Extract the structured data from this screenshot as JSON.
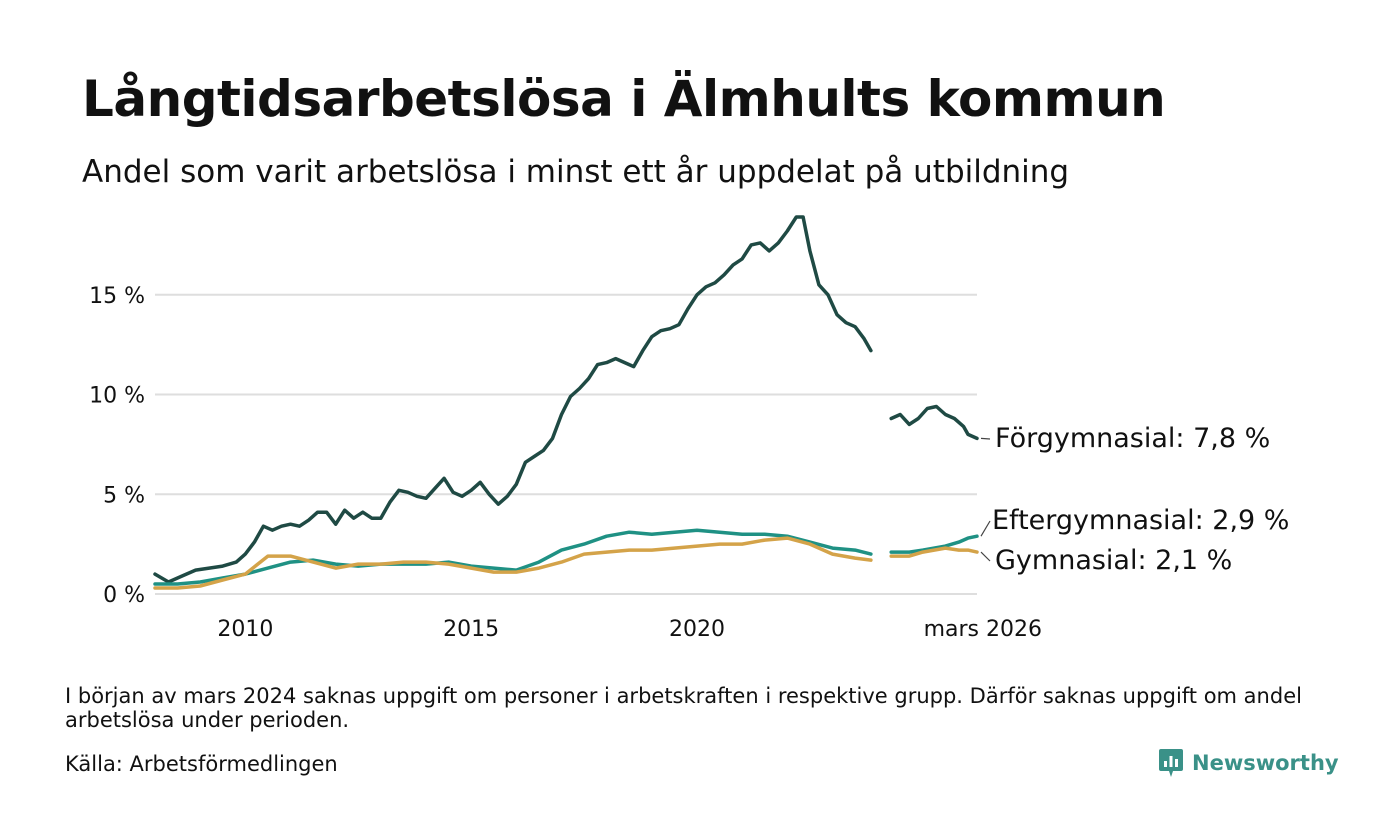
{
  "header": {
    "title": "Långtidsarbetslösa i Älmhults kommun",
    "subtitle": "Andel som varit arbetslösa i minst ett år uppdelat på utbildning"
  },
  "footer": {
    "note": "I början av mars 2024 saknas uppgift om personer i arbetskraften i respektive grupp. Därför saknas uppgift om andel arbetslösa under perioden.",
    "source": "Källa: Arbetsförmedlingen",
    "brand": "Newsworthy"
  },
  "colors": {
    "forgymnasial": "#1f4a44",
    "eftergymnasial": "#1f9184",
    "gymnasial": "#d4a349",
    "grid": "#dedede",
    "brand": "#3a9188"
  },
  "chart_data": {
    "type": "line",
    "title": "Långtidsarbetslösa i Älmhults kommun",
    "xlabel": "",
    "ylabel": "",
    "xlim": [
      2008.0,
      2026.2
    ],
    "ylim": [
      0,
      19
    ],
    "y_ticks": [
      0,
      5,
      10,
      15
    ],
    "y_tick_labels": [
      "0 %",
      "5 %",
      "10 %",
      "15 %"
    ],
    "x_ticks": [
      2010,
      2015,
      2020,
      2026.2
    ],
    "x_tick_labels": [
      "2010",
      "2015",
      "2020",
      "mars 2026"
    ],
    "gap": [
      2023.9,
      2024.3
    ],
    "grid": true,
    "series": [
      {
        "key": "forgymnasial",
        "name": "Förgymnasial",
        "end_label": "Förgymnasial: 7,8 %",
        "points": [
          [
            2008.0,
            1.0
          ],
          [
            2008.3,
            0.6
          ],
          [
            2008.6,
            0.9
          ],
          [
            2008.9,
            1.2
          ],
          [
            2009.2,
            1.3
          ],
          [
            2009.5,
            1.4
          ],
          [
            2009.8,
            1.6
          ],
          [
            2010.0,
            2.0
          ],
          [
            2010.2,
            2.6
          ],
          [
            2010.4,
            3.4
          ],
          [
            2010.6,
            3.2
          ],
          [
            2010.8,
            3.4
          ],
          [
            2011.0,
            3.5
          ],
          [
            2011.2,
            3.4
          ],
          [
            2011.4,
            3.7
          ],
          [
            2011.6,
            4.1
          ],
          [
            2011.8,
            4.1
          ],
          [
            2012.0,
            3.5
          ],
          [
            2012.2,
            4.2
          ],
          [
            2012.4,
            3.8
          ],
          [
            2012.6,
            4.1
          ],
          [
            2012.8,
            3.8
          ],
          [
            2013.0,
            3.8
          ],
          [
            2013.2,
            4.6
          ],
          [
            2013.4,
            5.2
          ],
          [
            2013.6,
            5.1
          ],
          [
            2013.8,
            4.9
          ],
          [
            2014.0,
            4.8
          ],
          [
            2014.2,
            5.3
          ],
          [
            2014.4,
            5.8
          ],
          [
            2014.6,
            5.1
          ],
          [
            2014.8,
            4.9
          ],
          [
            2015.0,
            5.2
          ],
          [
            2015.2,
            5.6
          ],
          [
            2015.4,
            5.0
          ],
          [
            2015.6,
            4.5
          ],
          [
            2015.8,
            4.9
          ],
          [
            2016.0,
            5.5
          ],
          [
            2016.2,
            6.6
          ],
          [
            2016.4,
            6.9
          ],
          [
            2016.6,
            7.2
          ],
          [
            2016.8,
            7.8
          ],
          [
            2017.0,
            9.0
          ],
          [
            2017.2,
            9.9
          ],
          [
            2017.4,
            10.3
          ],
          [
            2017.6,
            10.8
          ],
          [
            2017.8,
            11.5
          ],
          [
            2018.0,
            11.6
          ],
          [
            2018.2,
            11.8
          ],
          [
            2018.4,
            11.6
          ],
          [
            2018.6,
            11.4
          ],
          [
            2018.8,
            12.2
          ],
          [
            2019.0,
            12.9
          ],
          [
            2019.2,
            13.2
          ],
          [
            2019.4,
            13.3
          ],
          [
            2019.6,
            13.5
          ],
          [
            2019.8,
            14.3
          ],
          [
            2020.0,
            15.0
          ],
          [
            2020.2,
            15.4
          ],
          [
            2020.4,
            15.6
          ],
          [
            2020.6,
            16.0
          ],
          [
            2020.8,
            16.5
          ],
          [
            2021.0,
            16.8
          ],
          [
            2021.2,
            17.5
          ],
          [
            2021.4,
            17.6
          ],
          [
            2021.6,
            17.2
          ],
          [
            2021.8,
            17.6
          ],
          [
            2022.0,
            18.2
          ],
          [
            2022.2,
            18.9
          ],
          [
            2022.35,
            18.9
          ],
          [
            2022.5,
            17.2
          ],
          [
            2022.7,
            15.5
          ],
          [
            2022.9,
            15.0
          ],
          [
            2023.1,
            14.0
          ],
          [
            2023.3,
            13.6
          ],
          [
            2023.5,
            13.4
          ],
          [
            2023.7,
            12.8
          ],
          [
            2023.85,
            12.2
          ],
          [
            2024.3,
            8.8
          ],
          [
            2024.5,
            9.0
          ],
          [
            2024.7,
            8.5
          ],
          [
            2024.9,
            8.8
          ],
          [
            2025.1,
            9.3
          ],
          [
            2025.3,
            9.4
          ],
          [
            2025.5,
            9.0
          ],
          [
            2025.7,
            8.8
          ],
          [
            2025.9,
            8.4
          ],
          [
            2026.0,
            8.0
          ],
          [
            2026.2,
            7.8
          ]
        ]
      },
      {
        "key": "eftergymnasial",
        "name": "Eftergymnasial",
        "end_label": "Eftergymnasial: 2,9 %",
        "points": [
          [
            2008.0,
            0.5
          ],
          [
            2008.5,
            0.5
          ],
          [
            2009.0,
            0.6
          ],
          [
            2009.5,
            0.8
          ],
          [
            2010.0,
            1.0
          ],
          [
            2010.5,
            1.3
          ],
          [
            2011.0,
            1.6
          ],
          [
            2011.5,
            1.7
          ],
          [
            2012.0,
            1.5
          ],
          [
            2012.5,
            1.4
          ],
          [
            2013.0,
            1.5
          ],
          [
            2013.5,
            1.5
          ],
          [
            2014.0,
            1.5
          ],
          [
            2014.5,
            1.6
          ],
          [
            2015.0,
            1.4
          ],
          [
            2015.5,
            1.3
          ],
          [
            2016.0,
            1.2
          ],
          [
            2016.5,
            1.6
          ],
          [
            2017.0,
            2.2
          ],
          [
            2017.5,
            2.5
          ],
          [
            2018.0,
            2.9
          ],
          [
            2018.5,
            3.1
          ],
          [
            2019.0,
            3.0
          ],
          [
            2019.5,
            3.1
          ],
          [
            2020.0,
            3.2
          ],
          [
            2020.5,
            3.1
          ],
          [
            2021.0,
            3.0
          ],
          [
            2021.5,
            3.0
          ],
          [
            2022.0,
            2.9
          ],
          [
            2022.5,
            2.6
          ],
          [
            2023.0,
            2.3
          ],
          [
            2023.5,
            2.2
          ],
          [
            2023.85,
            2.0
          ],
          [
            2024.3,
            2.1
          ],
          [
            2024.7,
            2.1
          ],
          [
            2025.0,
            2.2
          ],
          [
            2025.5,
            2.4
          ],
          [
            2025.8,
            2.6
          ],
          [
            2026.0,
            2.8
          ],
          [
            2026.2,
            2.9
          ]
        ]
      },
      {
        "key": "gymnasial",
        "name": "Gymnasial",
        "end_label": "Gymnasial: 2,1 %",
        "points": [
          [
            2008.0,
            0.3
          ],
          [
            2008.5,
            0.3
          ],
          [
            2009.0,
            0.4
          ],
          [
            2009.5,
            0.7
          ],
          [
            2010.0,
            1.0
          ],
          [
            2010.5,
            1.9
          ],
          [
            2011.0,
            1.9
          ],
          [
            2011.5,
            1.6
          ],
          [
            2012.0,
            1.3
          ],
          [
            2012.5,
            1.5
          ],
          [
            2013.0,
            1.5
          ],
          [
            2013.5,
            1.6
          ],
          [
            2014.0,
            1.6
          ],
          [
            2014.5,
            1.5
          ],
          [
            2015.0,
            1.3
          ],
          [
            2015.5,
            1.1
          ],
          [
            2016.0,
            1.1
          ],
          [
            2016.5,
            1.3
          ],
          [
            2017.0,
            1.6
          ],
          [
            2017.5,
            2.0
          ],
          [
            2018.0,
            2.1
          ],
          [
            2018.5,
            2.2
          ],
          [
            2019.0,
            2.2
          ],
          [
            2019.5,
            2.3
          ],
          [
            2020.0,
            2.4
          ],
          [
            2020.5,
            2.5
          ],
          [
            2021.0,
            2.5
          ],
          [
            2021.5,
            2.7
          ],
          [
            2022.0,
            2.8
          ],
          [
            2022.5,
            2.5
          ],
          [
            2023.0,
            2.0
          ],
          [
            2023.5,
            1.8
          ],
          [
            2023.85,
            1.7
          ],
          [
            2024.3,
            1.9
          ],
          [
            2024.7,
            1.9
          ],
          [
            2025.0,
            2.1
          ],
          [
            2025.5,
            2.3
          ],
          [
            2025.8,
            2.2
          ],
          [
            2026.0,
            2.2
          ],
          [
            2026.2,
            2.1
          ]
        ]
      }
    ]
  }
}
